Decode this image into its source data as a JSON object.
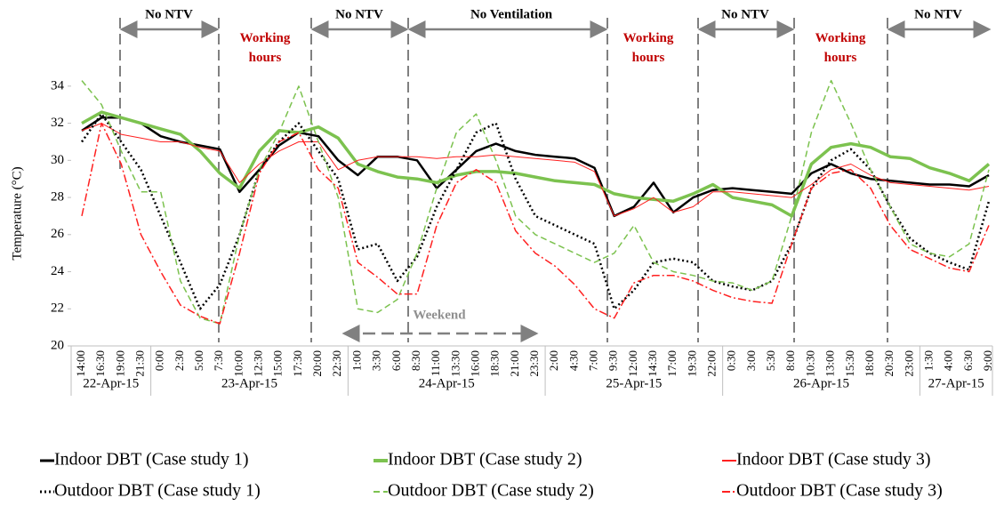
{
  "chart_data": {
    "type": "line",
    "y_label": "Temperature (°C)",
    "categories": [
      "14:00",
      "16:30",
      "19:00",
      "21:30",
      "0:00",
      "2:30",
      "5:00",
      "7:30",
      "10:00",
      "12:30",
      "15:00",
      "17:30",
      "20:00",
      "22:30",
      "1:00",
      "3:30",
      "6:00",
      "8:30",
      "11:00",
      "13:30",
      "16:00",
      "18:30",
      "21:00",
      "23:30",
      "2:00",
      "4:30",
      "7:00",
      "9:30",
      "12:00",
      "14:30",
      "17:00",
      "19:30",
      "22:00",
      "0:30",
      "3:00",
      "5:30",
      "8:00",
      "10:30",
      "13:00",
      "15:30",
      "18:00",
      "20:30",
      "23:00",
      "1:30",
      "4:00",
      "6:30",
      "9:00"
    ],
    "dates": [
      "22-Apr-15",
      "23-Apr-15",
      "24-Apr-15",
      "25-Apr-15",
      "26-Apr-15",
      "27-Apr-15"
    ],
    "ylim": [
      20,
      35
    ],
    "yticks": [
      20,
      22,
      24,
      26,
      28,
      30,
      32,
      34
    ],
    "series": [
      {
        "name": "Indoor DBT (Case study 1)",
        "color": "#000000",
        "width": 2.5,
        "dash": "solid",
        "values": [
          31.6,
          32.3,
          32.3,
          32,
          31.3,
          31,
          30.8,
          30.6,
          28.3,
          29.5,
          30.8,
          31.5,
          31.3,
          30,
          29.2,
          30.2,
          30.2,
          30,
          28.5,
          29.5,
          30.5,
          30.9,
          30.5,
          30.3,
          30.2,
          30.1,
          29.6,
          27,
          27.5,
          28.8,
          27.2,
          28,
          28.4,
          28.5,
          28.4,
          28.3,
          28.2,
          29.3,
          29.8,
          29.3,
          29,
          28.9,
          28.8,
          28.7,
          28.7,
          28.6,
          29.2
        ]
      },
      {
        "name": "Indoor DBT (Case study 2)",
        "color": "#7cc24f",
        "width": 3.5,
        "dash": "solid",
        "values": [
          32,
          32.6,
          32.3,
          32,
          31.7,
          31.4,
          30.5,
          29.3,
          28.5,
          30.5,
          31.6,
          31.5,
          31.8,
          31.2,
          29.8,
          29.4,
          29.1,
          29,
          28.8,
          29.2,
          29.4,
          29.4,
          29.3,
          29.1,
          28.9,
          28.8,
          28.7,
          28.2,
          28,
          27.9,
          27.8,
          28.2,
          28.7,
          28,
          27.8,
          27.6,
          27,
          29.8,
          30.7,
          30.9,
          30.7,
          30.2,
          30.1,
          29.6,
          29.3,
          28.9,
          29.8
        ]
      },
      {
        "name": "Indoor DBT (Case study 3)",
        "color": "#ff2020",
        "width": 1,
        "dash": "solid",
        "values": [
          31.6,
          32,
          31.4,
          31.2,
          31,
          31,
          30.7,
          30.5,
          28.8,
          29.8,
          30.5,
          31,
          31,
          29.5,
          30,
          30.2,
          30.2,
          30.2,
          30.1,
          30.2,
          30.2,
          30.3,
          30.2,
          30.1,
          30,
          29.9,
          29.4,
          27,
          27.4,
          28,
          27.2,
          27.5,
          28.3,
          28.3,
          28.2,
          28.1,
          28,
          28.7,
          29.5,
          29.8,
          29.2,
          28.8,
          28.7,
          28.6,
          28.5,
          28.4,
          28.6
        ]
      },
      {
        "name": "Outdoor DBT (Case study 1)",
        "color": "#000000",
        "width": 2.5,
        "dash": "dotted",
        "values": [
          31,
          32.5,
          31,
          29.5,
          27,
          24.5,
          22,
          23.3,
          26,
          29.5,
          31,
          32,
          30.5,
          29,
          25.2,
          25.5,
          23.5,
          24.8,
          27.5,
          29.5,
          31.5,
          32,
          29,
          27,
          26.5,
          26,
          25.5,
          22,
          23,
          24.5,
          24.7,
          24.5,
          23.5,
          23.2,
          23,
          23.5,
          25.5,
          28.5,
          30,
          30.6,
          29.5,
          27.5,
          25.8,
          25,
          24.5,
          24.1,
          27.8
        ]
      },
      {
        "name": "Outdoor DBT (Case study 2)",
        "color": "#7cc24f",
        "width": 1.5,
        "dash": "dashed",
        "values": [
          34.3,
          33,
          30.5,
          28.3,
          28.3,
          23.5,
          21.5,
          21.2,
          26,
          29.5,
          31.5,
          34,
          31,
          28,
          22,
          21.8,
          22.5,
          25,
          28.5,
          31.5,
          32.5,
          30,
          27,
          26,
          25.5,
          25,
          24.5,
          25,
          26.5,
          24.5,
          24,
          23.8,
          23.5,
          23.4,
          23,
          23.5,
          27,
          31.5,
          34.3,
          32,
          29.5,
          27.5,
          25.5,
          25,
          24.8,
          25.5,
          29.5
        ]
      },
      {
        "name": "Outdoor DBT (Case study 3)",
        "color": "#ff2020",
        "width": 1.5,
        "dash": "dashdot",
        "values": [
          27,
          32,
          29.8,
          26,
          24,
          22.2,
          21.6,
          21.2,
          25,
          29.3,
          31,
          31.5,
          29.5,
          28.5,
          24.5,
          23.7,
          22.8,
          22.8,
          26.5,
          28.8,
          29.5,
          28.8,
          26.2,
          25,
          24.3,
          23.3,
          22,
          21.5,
          23.4,
          23.8,
          23.8,
          23.5,
          23,
          22.6,
          22.4,
          22.3,
          25.5,
          28.5,
          29.3,
          29.5,
          28.5,
          26.5,
          25.2,
          24.7,
          24.2,
          24,
          26.5
        ]
      }
    ],
    "annotations": [
      {
        "text": "No NTV"
      },
      {
        "lines": [
          "Working",
          "hours"
        ]
      },
      {
        "text": "No NTV"
      },
      {
        "text": "No Ventilation"
      },
      {
        "lines": [
          "Working",
          "hours"
        ]
      },
      {
        "text": "No NTV"
      },
      {
        "lines": [
          "Working",
          "hours"
        ]
      },
      {
        "text": "No NTV"
      },
      {
        "text": "Weekend"
      }
    ]
  }
}
